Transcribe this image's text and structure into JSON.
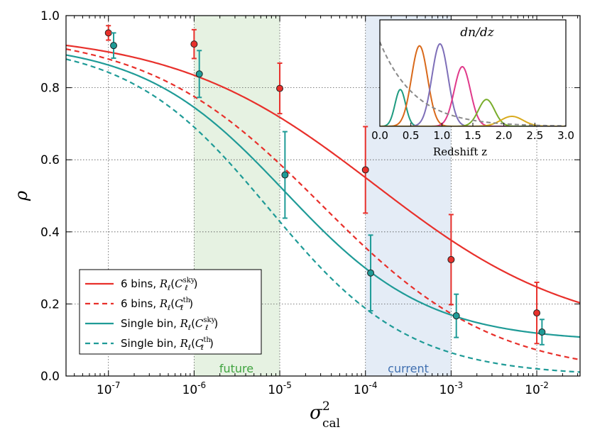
{
  "chart_data": {
    "type": "line",
    "xscale": "log",
    "xlabel": "σ²cal",
    "ylabel": "ρ",
    "xlim": [
      3.2e-08,
      0.032
    ],
    "ylim": [
      0.0,
      1.0
    ],
    "x_tick_labels": [
      {
        "base": "10",
        "exp": "-7"
      },
      {
        "base": "10",
        "exp": "-6"
      },
      {
        "base": "10",
        "exp": "-5"
      },
      {
        "base": "10",
        "exp": "-4"
      },
      {
        "base": "10",
        "exp": "-3"
      },
      {
        "base": "10",
        "exp": "-2"
      }
    ],
    "y_tick_labels": [
      "0.0",
      "0.2",
      "0.4",
      "0.6",
      "0.8",
      "1.0"
    ],
    "grid": true,
    "bands": [
      {
        "label": "future",
        "x_range": [
          1e-06,
          1e-05
        ],
        "color": "#e6f2e2",
        "text_color": "#3fa33f"
      },
      {
        "label": "current",
        "x_range": [
          0.0001,
          0.001
        ],
        "color": "#e4ecf6",
        "text_color": "#3f6fb0"
      }
    ],
    "series": [
      {
        "name": "6 bins, R_ℓ(C_ℓ^sky)",
        "label_main": "6 bins, ",
        "label_math": "R",
        "label_sub": "ℓ",
        "label_arg": "C",
        "label_sup": "sky",
        "color": "#e8302b",
        "dash": "solid",
        "model": {
          "top": 0.955,
          "bottom": 0.105,
          "x0": 0.00013,
          "n": 0.37
        }
      },
      {
        "name": "6 bins, R_ℓ(C_ℓ^th)",
        "label_main": "6 bins, ",
        "label_math": "R",
        "label_sub": "ℓ",
        "label_arg": "C",
        "label_sup": "th",
        "color": "#e8302b",
        "dash": "dashed",
        "model": {
          "top": 0.955,
          "bottom": 0.0,
          "x0": 3e-05,
          "n": 0.43
        }
      },
      {
        "name": "Single bin, R_ℓ(C_ℓ^sky)",
        "label_main": "Single bin, ",
        "label_math": "R",
        "label_sub": "ℓ",
        "label_arg": "C",
        "label_sup": "sky",
        "color": "#1f9b97",
        "dash": "solid",
        "model": {
          "top": 0.928,
          "bottom": 0.095,
          "x0": 1.15e-05,
          "n": 0.52
        }
      },
      {
        "name": "Single bin, R_ℓ(C_ℓ^th)",
        "label_main": "Single bin, ",
        "label_math": "R",
        "label_sub": "ℓ",
        "label_arg": "C",
        "label_sup": "th",
        "color": "#1f9b97",
        "dash": "dashed",
        "model": {
          "top": 0.928,
          "bottom": 0.0,
          "x0": 7.5e-06,
          "n": 0.53
        }
      }
    ],
    "error_points": [
      {
        "series": "6 bins",
        "color": "#e8302b",
        "points": [
          {
            "x": 1e-07,
            "y": 0.952,
            "err": 0.02
          },
          {
            "x": 1e-06,
            "y": 0.921,
            "err": 0.04
          },
          {
            "x": 1e-05,
            "y": 0.798,
            "err": 0.07
          },
          {
            "x": 0.0001,
            "y": 0.572,
            "err": 0.12
          },
          {
            "x": 0.001,
            "y": 0.323,
            "err": 0.125
          },
          {
            "x": 0.01,
            "y": 0.175,
            "err": 0.085
          }
        ]
      },
      {
        "series": "Single bin",
        "color": "#1f9b97",
        "points": [
          {
            "x": 1.15e-07,
            "y": 0.917,
            "err": 0.035
          },
          {
            "x": 1.15e-06,
            "y": 0.838,
            "err": 0.065
          },
          {
            "x": 1.15e-05,
            "y": 0.558,
            "err": 0.12
          },
          {
            "x": 0.000115,
            "y": 0.286,
            "err": 0.105
          },
          {
            "x": 0.00115,
            "y": 0.167,
            "err": 0.06
          },
          {
            "x": 0.0115,
            "y": 0.122,
            "err": 0.035
          }
        ]
      }
    ],
    "inset": {
      "title": "dn/dz",
      "xlabel": "Redshift z",
      "xlim": [
        0.0,
        3.0
      ],
      "ylim": [
        0.0,
        1.0
      ],
      "x_tick_labels": [
        "0.0",
        "0.5",
        "1.0",
        "1.5",
        "2.0",
        "2.5",
        "3.0"
      ],
      "curves": [
        {
          "color": "#1f9b80",
          "mu": 0.33,
          "sigma": 0.085,
          "amp": 0.37
        },
        {
          "color": "#d9691a",
          "mu": 0.64,
          "sigma": 0.13,
          "amp": 0.81
        },
        {
          "color": "#7e6fb8",
          "mu": 0.97,
          "sigma": 0.13,
          "amp": 0.83
        },
        {
          "color": "#e0398a",
          "mu": 1.33,
          "sigma": 0.13,
          "amp": 0.6
        },
        {
          "color": "#79ad2b",
          "mu": 1.72,
          "sigma": 0.13,
          "amp": 0.27
        },
        {
          "color": "#d9aa1c",
          "mu": 2.13,
          "sigma": 0.18,
          "amp": 0.1
        }
      ],
      "overall": {
        "color": "#8a8a8a",
        "dash": "dashed",
        "peak": 0.85,
        "decay": 1.25
      }
    }
  }
}
